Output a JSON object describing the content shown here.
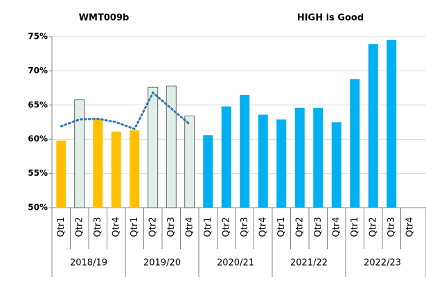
{
  "chart_data": {
    "type": "bar",
    "annotations": [
      "WMT009b",
      "HIGH is Good"
    ],
    "categories": [
      "Qtr1",
      "Qtr2",
      "Qtr3",
      "Qtr4",
      "Qtr1",
      "Qtr2",
      "Qtr3",
      "Qtr4",
      "Qtr1",
      "Qtr2",
      "Qtr3",
      "Qtr4",
      "Qtr1",
      "Qtr2",
      "Qtr3",
      "Qtr4",
      "Qtr1",
      "Qtr2",
      "Qtr3",
      "Qtr4"
    ],
    "groups": [
      "2018/19",
      "2019/20",
      "2020/21",
      "2021/22",
      "2022/23"
    ],
    "series": [
      {
        "values": [
          59.8,
          65.8,
          62.9,
          61.1,
          61.3,
          67.6,
          67.8,
          63.4,
          60.6,
          64.8,
          66.5,
          63.6,
          62.9,
          64.6,
          64.6,
          62.5,
          68.8,
          73.9,
          74.5,
          null
        ],
        "colors": [
          "#ffc000",
          "#dfeee6",
          "#ffc000",
          "#ffc000",
          "#ffc000",
          "#dfeee6",
          "#dfeee6",
          "#dfeee6",
          "#00b0f0",
          "#00b0f0",
          "#00b0f0",
          "#00b0f0",
          "#00b0f0",
          "#00b0f0",
          "#00b0f0",
          "#00b0f0",
          "#00b0f0",
          "#00b0f0",
          "#00b0f0",
          "#00b0f0"
        ]
      },
      {
        "type": "line",
        "style": "dotted",
        "color": "#2e75b6",
        "values": [
          61.9,
          62.9,
          63.0,
          62.5,
          61.5,
          66.8,
          64.5,
          62.2,
          null,
          null,
          null,
          null,
          null,
          null,
          null,
          null,
          null,
          null,
          null,
          null
        ]
      }
    ],
    "ylim": [
      50,
      75
    ],
    "yticks": [
      {
        "value": 50,
        "label": "50%"
      },
      {
        "value": 55,
        "label": "55%"
      },
      {
        "value": 60,
        "label": "60%"
      },
      {
        "value": 65,
        "label": "65%"
      },
      {
        "value": 70,
        "label": "70%"
      },
      {
        "value": 75,
        "label": "75%"
      }
    ],
    "grid": true
  }
}
